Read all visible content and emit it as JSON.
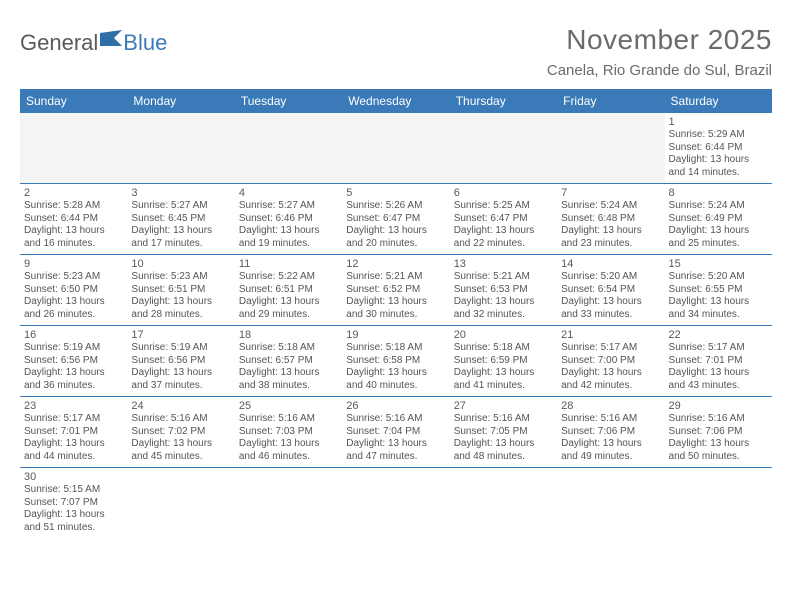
{
  "brand": {
    "part1": "General",
    "part2": "Blue"
  },
  "title": "November 2025",
  "location": "Canela, Rio Grande do Sul, Brazil",
  "colors": {
    "header_bg": "#3a7ab8",
    "header_text": "#ffffff",
    "border": "#3a7ab8",
    "text": "#555555",
    "title_text": "#6b6b6b",
    "empty_bg": "#f4f4f4",
    "page_bg": "#ffffff"
  },
  "day_headers": [
    "Sunday",
    "Monday",
    "Tuesday",
    "Wednesday",
    "Thursday",
    "Friday",
    "Saturday"
  ],
  "weeks": [
    [
      {
        "empty": true
      },
      {
        "empty": true
      },
      {
        "empty": true
      },
      {
        "empty": true
      },
      {
        "empty": true
      },
      {
        "empty": true
      },
      {
        "num": "1",
        "sunrise": "Sunrise: 5:29 AM",
        "sunset": "Sunset: 6:44 PM",
        "daylight1": "Daylight: 13 hours",
        "daylight2": "and 14 minutes."
      }
    ],
    [
      {
        "num": "2",
        "sunrise": "Sunrise: 5:28 AM",
        "sunset": "Sunset: 6:44 PM",
        "daylight1": "Daylight: 13 hours",
        "daylight2": "and 16 minutes."
      },
      {
        "num": "3",
        "sunrise": "Sunrise: 5:27 AM",
        "sunset": "Sunset: 6:45 PM",
        "daylight1": "Daylight: 13 hours",
        "daylight2": "and 17 minutes."
      },
      {
        "num": "4",
        "sunrise": "Sunrise: 5:27 AM",
        "sunset": "Sunset: 6:46 PM",
        "daylight1": "Daylight: 13 hours",
        "daylight2": "and 19 minutes."
      },
      {
        "num": "5",
        "sunrise": "Sunrise: 5:26 AM",
        "sunset": "Sunset: 6:47 PM",
        "daylight1": "Daylight: 13 hours",
        "daylight2": "and 20 minutes."
      },
      {
        "num": "6",
        "sunrise": "Sunrise: 5:25 AM",
        "sunset": "Sunset: 6:47 PM",
        "daylight1": "Daylight: 13 hours",
        "daylight2": "and 22 minutes."
      },
      {
        "num": "7",
        "sunrise": "Sunrise: 5:24 AM",
        "sunset": "Sunset: 6:48 PM",
        "daylight1": "Daylight: 13 hours",
        "daylight2": "and 23 minutes."
      },
      {
        "num": "8",
        "sunrise": "Sunrise: 5:24 AM",
        "sunset": "Sunset: 6:49 PM",
        "daylight1": "Daylight: 13 hours",
        "daylight2": "and 25 minutes."
      }
    ],
    [
      {
        "num": "9",
        "sunrise": "Sunrise: 5:23 AM",
        "sunset": "Sunset: 6:50 PM",
        "daylight1": "Daylight: 13 hours",
        "daylight2": "and 26 minutes."
      },
      {
        "num": "10",
        "sunrise": "Sunrise: 5:23 AM",
        "sunset": "Sunset: 6:51 PM",
        "daylight1": "Daylight: 13 hours",
        "daylight2": "and 28 minutes."
      },
      {
        "num": "11",
        "sunrise": "Sunrise: 5:22 AM",
        "sunset": "Sunset: 6:51 PM",
        "daylight1": "Daylight: 13 hours",
        "daylight2": "and 29 minutes."
      },
      {
        "num": "12",
        "sunrise": "Sunrise: 5:21 AM",
        "sunset": "Sunset: 6:52 PM",
        "daylight1": "Daylight: 13 hours",
        "daylight2": "and 30 minutes."
      },
      {
        "num": "13",
        "sunrise": "Sunrise: 5:21 AM",
        "sunset": "Sunset: 6:53 PM",
        "daylight1": "Daylight: 13 hours",
        "daylight2": "and 32 minutes."
      },
      {
        "num": "14",
        "sunrise": "Sunrise: 5:20 AM",
        "sunset": "Sunset: 6:54 PM",
        "daylight1": "Daylight: 13 hours",
        "daylight2": "and 33 minutes."
      },
      {
        "num": "15",
        "sunrise": "Sunrise: 5:20 AM",
        "sunset": "Sunset: 6:55 PM",
        "daylight1": "Daylight: 13 hours",
        "daylight2": "and 34 minutes."
      }
    ],
    [
      {
        "num": "16",
        "sunrise": "Sunrise: 5:19 AM",
        "sunset": "Sunset: 6:56 PM",
        "daylight1": "Daylight: 13 hours",
        "daylight2": "and 36 minutes."
      },
      {
        "num": "17",
        "sunrise": "Sunrise: 5:19 AM",
        "sunset": "Sunset: 6:56 PM",
        "daylight1": "Daylight: 13 hours",
        "daylight2": "and 37 minutes."
      },
      {
        "num": "18",
        "sunrise": "Sunrise: 5:18 AM",
        "sunset": "Sunset: 6:57 PM",
        "daylight1": "Daylight: 13 hours",
        "daylight2": "and 38 minutes."
      },
      {
        "num": "19",
        "sunrise": "Sunrise: 5:18 AM",
        "sunset": "Sunset: 6:58 PM",
        "daylight1": "Daylight: 13 hours",
        "daylight2": "and 40 minutes."
      },
      {
        "num": "20",
        "sunrise": "Sunrise: 5:18 AM",
        "sunset": "Sunset: 6:59 PM",
        "daylight1": "Daylight: 13 hours",
        "daylight2": "and 41 minutes."
      },
      {
        "num": "21",
        "sunrise": "Sunrise: 5:17 AM",
        "sunset": "Sunset: 7:00 PM",
        "daylight1": "Daylight: 13 hours",
        "daylight2": "and 42 minutes."
      },
      {
        "num": "22",
        "sunrise": "Sunrise: 5:17 AM",
        "sunset": "Sunset: 7:01 PM",
        "daylight1": "Daylight: 13 hours",
        "daylight2": "and 43 minutes."
      }
    ],
    [
      {
        "num": "23",
        "sunrise": "Sunrise: 5:17 AM",
        "sunset": "Sunset: 7:01 PM",
        "daylight1": "Daylight: 13 hours",
        "daylight2": "and 44 minutes."
      },
      {
        "num": "24",
        "sunrise": "Sunrise: 5:16 AM",
        "sunset": "Sunset: 7:02 PM",
        "daylight1": "Daylight: 13 hours",
        "daylight2": "and 45 minutes."
      },
      {
        "num": "25",
        "sunrise": "Sunrise: 5:16 AM",
        "sunset": "Sunset: 7:03 PM",
        "daylight1": "Daylight: 13 hours",
        "daylight2": "and 46 minutes."
      },
      {
        "num": "26",
        "sunrise": "Sunrise: 5:16 AM",
        "sunset": "Sunset: 7:04 PM",
        "daylight1": "Daylight: 13 hours",
        "daylight2": "and 47 minutes."
      },
      {
        "num": "27",
        "sunrise": "Sunrise: 5:16 AM",
        "sunset": "Sunset: 7:05 PM",
        "daylight1": "Daylight: 13 hours",
        "daylight2": "and 48 minutes."
      },
      {
        "num": "28",
        "sunrise": "Sunrise: 5:16 AM",
        "sunset": "Sunset: 7:06 PM",
        "daylight1": "Daylight: 13 hours",
        "daylight2": "and 49 minutes."
      },
      {
        "num": "29",
        "sunrise": "Sunrise: 5:16 AM",
        "sunset": "Sunset: 7:06 PM",
        "daylight1": "Daylight: 13 hours",
        "daylight2": "and 50 minutes."
      }
    ],
    [
      {
        "num": "30",
        "sunrise": "Sunrise: 5:15 AM",
        "sunset": "Sunset: 7:07 PM",
        "daylight1": "Daylight: 13 hours",
        "daylight2": "and 51 minutes."
      },
      {
        "empty": true
      },
      {
        "empty": true
      },
      {
        "empty": true
      },
      {
        "empty": true
      },
      {
        "empty": true
      },
      {
        "empty": true
      }
    ]
  ]
}
